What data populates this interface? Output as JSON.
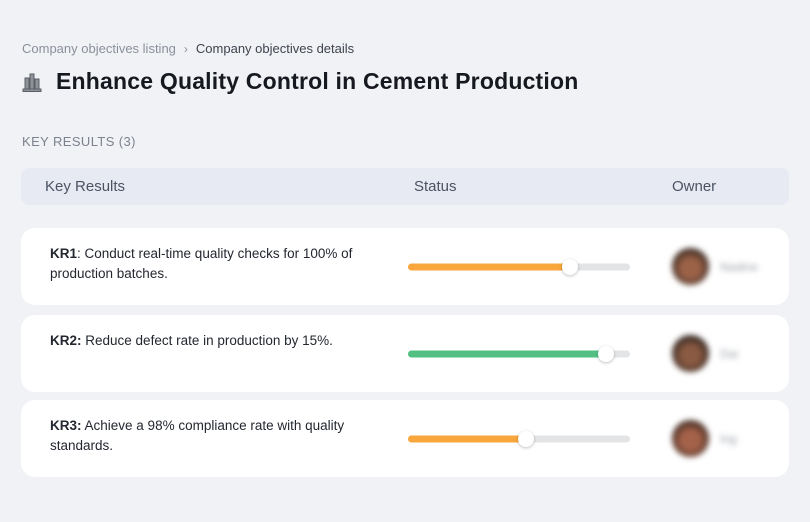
{
  "breadcrumb": {
    "separator": "›",
    "items": [
      {
        "label": "Company objectives listing"
      },
      {
        "label": "Company objectives details"
      }
    ]
  },
  "header": {
    "icon": "buildings-icon",
    "title": "Enhance Quality Control in Cement Production"
  },
  "section_label": "KEY RESULTS (3)",
  "table": {
    "columns": {
      "key_results": "Key Results",
      "status": "Status",
      "owner": "Owner"
    },
    "rows": [
      {
        "kr_label": "KR1",
        "kr_rest": ": Conduct real-time quality checks for 100% of production batches.",
        "progress": 73,
        "bar_color": "#f9a63c",
        "owner_name": "Nadine",
        "avatar_outer": "#2b211c",
        "avatar_inner": "#9c6248"
      },
      {
        "kr_label": "KR2:",
        "kr_rest": " Reduce defect rate in production by 15%.",
        "progress": 89,
        "bar_color": "#53c083",
        "owner_name": "Dai",
        "avatar_outer": "#241d1a",
        "avatar_inner": "#8a5a42"
      },
      {
        "kr_label": "KR3:",
        "kr_rest": " Achieve a 98% compliance rate with quality standards.",
        "progress": 53,
        "bar_color": "#f9a63c",
        "owner_name": "Ing",
        "avatar_outer": "#35241d",
        "avatar_inner": "#a5624a"
      }
    ]
  },
  "colors": {
    "page_bg": "#f1f2f5",
    "header_bg": "#e7eaf2",
    "track": "#e3e4e6",
    "orange": "#f9a63c",
    "green": "#53c083"
  }
}
